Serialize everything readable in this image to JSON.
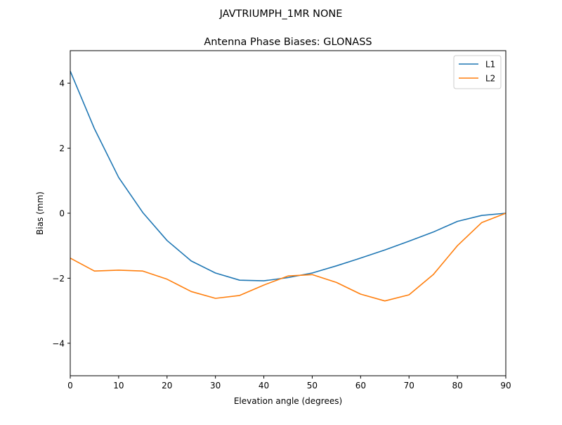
{
  "figure": {
    "suptitle": "JAVTRIUMPH_1MR  NONE"
  },
  "chart_data": {
    "type": "line",
    "suptitle": "JAVTRIUMPH_1MR  NONE",
    "title": "Antenna Phase Biases: GLONASS",
    "xlabel": "Elevation angle (degrees)",
    "ylabel": "Bias (mm)",
    "xlim": [
      0,
      90
    ],
    "ylim": [
      -5,
      5
    ],
    "xticks": [
      0,
      10,
      20,
      30,
      40,
      50,
      60,
      70,
      80,
      90
    ],
    "xtick_labels": [
      "0",
      "10",
      "20",
      "30",
      "40",
      "50",
      "60",
      "70",
      "80",
      "90"
    ],
    "yticks": [
      -4,
      -2,
      0,
      2,
      4
    ],
    "ytick_labels": [
      "−4",
      "−2",
      "0",
      "2",
      "4"
    ],
    "grid": false,
    "legend_position": "upper right",
    "x": [
      0,
      5,
      10,
      15,
      20,
      25,
      30,
      35,
      40,
      45,
      50,
      55,
      60,
      65,
      70,
      75,
      80,
      85,
      90
    ],
    "series": [
      {
        "name": "L1",
        "color": "#1f77b4",
        "values": [
          4.37,
          2.6,
          1.1,
          0.02,
          -0.84,
          -1.47,
          -1.84,
          -2.06,
          -2.08,
          -1.98,
          -1.84,
          -1.62,
          -1.38,
          -1.13,
          -0.86,
          -0.58,
          -0.25,
          -0.07,
          0.0
        ]
      },
      {
        "name": "L2",
        "color": "#ff7f0e",
        "values": [
          -1.38,
          -1.78,
          -1.75,
          -1.78,
          -2.03,
          -2.41,
          -2.62,
          -2.53,
          -2.21,
          -1.93,
          -1.89,
          -2.13,
          -2.49,
          -2.7,
          -2.51,
          -1.89,
          -1.0,
          -0.29,
          0.0
        ]
      }
    ]
  }
}
